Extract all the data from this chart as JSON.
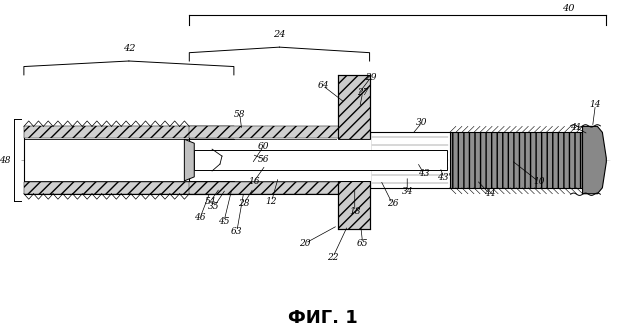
{
  "title": "ФИГ. 1",
  "bg_color": "#ffffff",
  "line_color": "#000000",
  "fig_width": 6.4,
  "fig_height": 3.32
}
